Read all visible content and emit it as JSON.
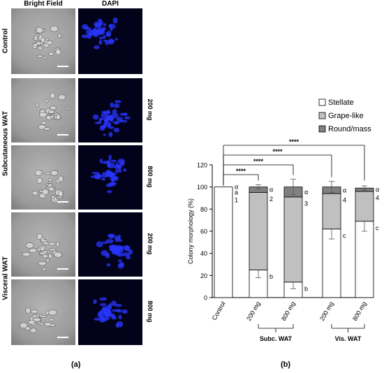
{
  "figure": {
    "panel_a_label": "(a)",
    "panel_b_label": "(b)"
  },
  "micrographs": {
    "columns": [
      "Bright Field",
      "DAPI"
    ],
    "rows": [
      {
        "group": "Control",
        "dose": ""
      },
      {
        "group": "Subcutaneous WAT",
        "dose": "200 mg"
      },
      {
        "group": "",
        "dose": "800 mg"
      },
      {
        "group": "Visceral WAT",
        "dose": "200 mg"
      },
      {
        "group": "",
        "dose": "800 mg"
      }
    ],
    "colors": {
      "bright_field_bg": "#9a9a9a",
      "cells": "#d8d8d8",
      "dapi_bg": "#02021a",
      "dapi_nuclei": "#2a35ff"
    }
  },
  "chart_data": {
    "type": "bar",
    "stacked": true,
    "categories": [
      "Control",
      "200 mg",
      "800 mg",
      "200 mg",
      "800 mg"
    ],
    "group_labels": [
      {
        "label": "Subc. WAT",
        "covers": [
          1,
          2
        ]
      },
      {
        "label": "Vis. WAT",
        "covers": [
          3,
          4
        ]
      }
    ],
    "series": [
      {
        "name": "Stellate",
        "color": "#ffffff",
        "values": [
          100,
          25,
          14,
          62,
          69
        ],
        "error": [
          0,
          7,
          6,
          9,
          9
        ]
      },
      {
        "name": "Grape-like",
        "color": "#c0c0c0",
        "values": [
          0,
          70,
          77,
          32,
          27
        ],
        "error": [
          0,
          0,
          0,
          0,
          0
        ]
      },
      {
        "name": "Round/mass",
        "color": "#808080",
        "values": [
          0,
          5,
          9,
          6,
          3
        ],
        "error": [
          0,
          2,
          7,
          5,
          2
        ]
      }
    ],
    "ylabel": "Colony morphology (%)",
    "xlabel": "",
    "ylim": [
      0,
      120
    ],
    "yticks": [
      0,
      20,
      40,
      60,
      80,
      100,
      120
    ],
    "legend_position": "top-right",
    "letters": [
      {
        "category": 0,
        "labels": [
          "α",
          "a",
          "1"
        ]
      },
      {
        "category": 1,
        "labels": [
          "α",
          "2",
          "b"
        ]
      },
      {
        "category": 2,
        "labels": [
          "α",
          "3",
          "b"
        ]
      },
      {
        "category": 3,
        "labels": [
          "α",
          "4",
          "c"
        ]
      },
      {
        "category": 4,
        "labels": [
          "α",
          "4",
          "c"
        ]
      }
    ],
    "significance": [
      {
        "from": 0,
        "to": 1,
        "label": "****"
      },
      {
        "from": 0,
        "to": 2,
        "label": "****"
      },
      {
        "from": 0,
        "to": 3,
        "label": "****"
      },
      {
        "from": 0,
        "to": 4,
        "label": "****"
      }
    ]
  }
}
